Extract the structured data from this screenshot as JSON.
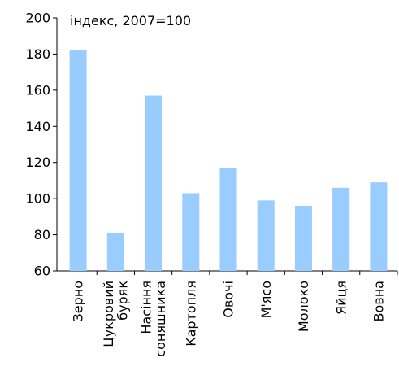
{
  "chart_data": {
    "type": "bar",
    "annotation": "індекс, 2007=100",
    "categories": [
      "Зерно",
      "Цукровий буряк",
      "Насіння соняшника",
      "Картопля",
      "Овочі",
      "М'ясо",
      "Молоко",
      "Яйця",
      "Вовна"
    ],
    "values": [
      182,
      81,
      157,
      103,
      117,
      99,
      96,
      106,
      109
    ],
    "color": "#99ccff",
    "ylim": [
      60,
      200
    ],
    "yticks": [
      60,
      80,
      100,
      120,
      140,
      160,
      180,
      200
    ],
    "grid": false
  }
}
